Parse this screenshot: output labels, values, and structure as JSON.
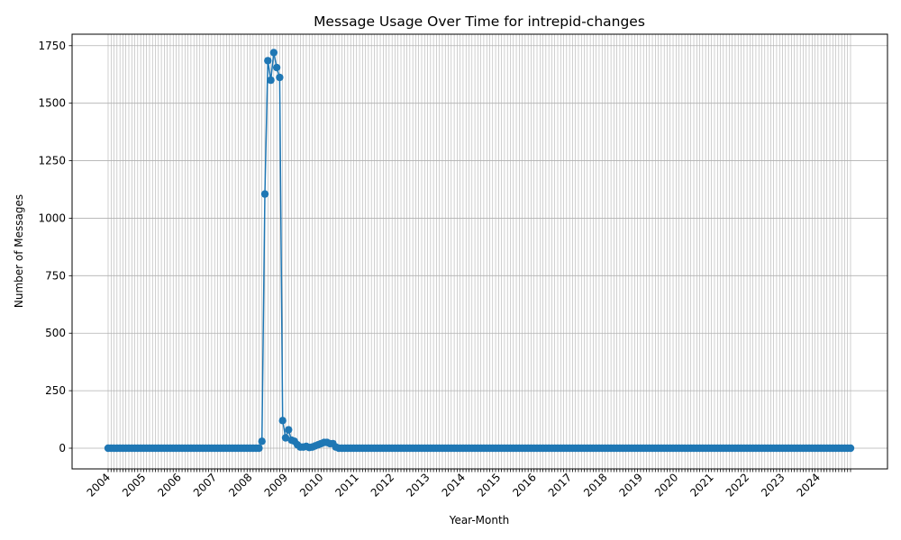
{
  "chart_data": {
    "type": "line",
    "title": "Message Usage Over Time for intrepid-changes",
    "xlabel": "Year-Month",
    "ylabel": "Number of Messages",
    "ylim": [
      -90,
      1800
    ],
    "yticks": [
      0,
      250,
      500,
      750,
      1000,
      1250,
      1500,
      1750
    ],
    "grid": true,
    "marker": "circle",
    "color": "#1f77b4",
    "start": "2004-01",
    "end": "2024-12",
    "year_labels": [
      "2004",
      "2005",
      "2006",
      "2007",
      "2008",
      "2009",
      "2010",
      "2011",
      "2012",
      "2013",
      "2014",
      "2015",
      "2016",
      "2017",
      "2018",
      "2019",
      "2020",
      "2021",
      "2022",
      "2023",
      "2024"
    ],
    "nonzero_points": [
      {
        "x": "2008-05",
        "y": 30
      },
      {
        "x": "2008-06",
        "y": 1105
      },
      {
        "x": "2008-07",
        "y": 1685
      },
      {
        "x": "2008-08",
        "y": 1600
      },
      {
        "x": "2008-09",
        "y": 1720
      },
      {
        "x": "2008-10",
        "y": 1655
      },
      {
        "x": "2008-11",
        "y": 1612
      },
      {
        "x": "2008-12",
        "y": 120
      },
      {
        "x": "2009-01",
        "y": 45
      },
      {
        "x": "2009-02",
        "y": 80
      },
      {
        "x": "2009-03",
        "y": 35
      },
      {
        "x": "2009-04",
        "y": 30
      },
      {
        "x": "2009-05",
        "y": 15
      },
      {
        "x": "2009-06",
        "y": 5
      },
      {
        "x": "2009-07",
        "y": 5
      },
      {
        "x": "2009-08",
        "y": 8
      },
      {
        "x": "2009-09",
        "y": 3
      },
      {
        "x": "2009-10",
        "y": 5
      },
      {
        "x": "2009-11",
        "y": 10
      },
      {
        "x": "2009-12",
        "y": 15
      },
      {
        "x": "2010-01",
        "y": 20
      },
      {
        "x": "2010-02",
        "y": 25
      },
      {
        "x": "2010-03",
        "y": 25
      },
      {
        "x": "2010-04",
        "y": 20
      },
      {
        "x": "2010-05",
        "y": 20
      },
      {
        "x": "2010-06",
        "y": 5
      }
    ]
  }
}
